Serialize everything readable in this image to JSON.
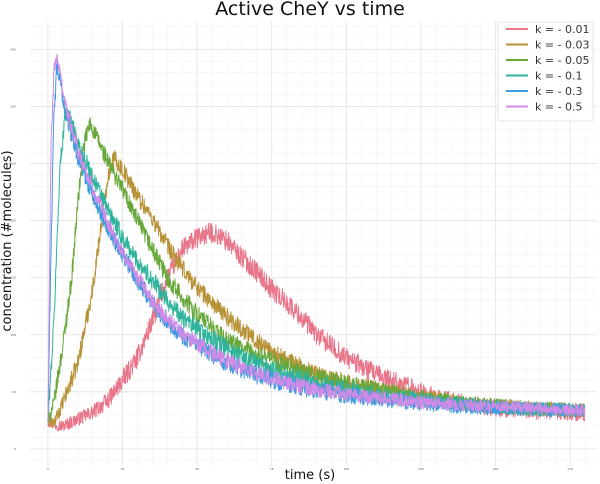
{
  "chart_data": {
    "type": "line",
    "title": "Active CheY vs time",
    "xlabel": "time (s)",
    "ylabel": "concentration (#molecules)",
    "xlim": [
      -6,
      184
    ],
    "ylim": [
      -15,
      375
    ],
    "grid": true,
    "legend_position": "top-right",
    "x_ticks": [
      0,
      25,
      50,
      75,
      100,
      125,
      150,
      175
    ],
    "y_ticks": [
      0,
      50,
      100,
      150,
      200,
      250,
      300,
      350
    ],
    "series": [
      {
        "name": "k = - 0.01",
        "color": "#e8758a",
        "points": [
          [
            0,
            25
          ],
          [
            2,
            22
          ],
          [
            5,
            20
          ],
          [
            10,
            26
          ],
          [
            15,
            32
          ],
          [
            20,
            42
          ],
          [
            25,
            60
          ],
          [
            30,
            80
          ],
          [
            35,
            112
          ],
          [
            40,
            150
          ],
          [
            45,
            175
          ],
          [
            50,
            185
          ],
          [
            55,
            190
          ],
          [
            60,
            182
          ],
          [
            65,
            168
          ],
          [
            70,
            155
          ],
          [
            75,
            140
          ],
          [
            80,
            128
          ],
          [
            85,
            115
          ],
          [
            90,
            100
          ],
          [
            95,
            90
          ],
          [
            100,
            80
          ],
          [
            110,
            65
          ],
          [
            120,
            55
          ],
          [
            130,
            45
          ],
          [
            140,
            40
          ],
          [
            150,
            35
          ],
          [
            160,
            33
          ],
          [
            170,
            32
          ],
          [
            180,
            30
          ]
        ],
        "noise": 9
      },
      {
        "name": "k = - 0.03",
        "color": "#b89236",
        "points": [
          [
            0,
            25
          ],
          [
            2,
            22
          ],
          [
            5,
            40
          ],
          [
            10,
            75
          ],
          [
            15,
            140
          ],
          [
            20,
            238
          ],
          [
            22,
            255
          ],
          [
            25,
            245
          ],
          [
            30,
            222
          ],
          [
            35,
            202
          ],
          [
            40,
            178
          ],
          [
            45,
            158
          ],
          [
            50,
            142
          ],
          [
            55,
            128
          ],
          [
            60,
            116
          ],
          [
            65,
            105
          ],
          [
            70,
            95
          ],
          [
            75,
            85
          ],
          [
            80,
            77
          ],
          [
            90,
            66
          ],
          [
            100,
            58
          ],
          [
            110,
            52
          ],
          [
            120,
            47
          ],
          [
            130,
            43
          ],
          [
            140,
            40
          ],
          [
            150,
            38
          ],
          [
            160,
            36
          ],
          [
            170,
            35
          ],
          [
            180,
            34
          ]
        ],
        "noise": 8
      },
      {
        "name": "k = - 0.05",
        "color": "#68a83a",
        "points": [
          [
            0,
            25
          ],
          [
            2,
            40
          ],
          [
            5,
            90
          ],
          [
            8,
            150
          ],
          [
            10,
            215
          ],
          [
            12,
            265
          ],
          [
            14,
            285
          ],
          [
            16,
            275
          ],
          [
            20,
            252
          ],
          [
            25,
            228
          ],
          [
            30,
            200
          ],
          [
            35,
            175
          ],
          [
            40,
            150
          ],
          [
            45,
            133
          ],
          [
            50,
            118
          ],
          [
            60,
            95
          ],
          [
            70,
            82
          ],
          [
            80,
            72
          ],
          [
            90,
            63
          ],
          [
            100,
            57
          ],
          [
            110,
            52
          ],
          [
            120,
            47
          ],
          [
            130,
            43
          ],
          [
            140,
            40
          ],
          [
            150,
            38
          ],
          [
            160,
            36
          ],
          [
            170,
            35
          ],
          [
            180,
            34
          ]
        ],
        "noise": 8
      },
      {
        "name": "k = - 0.1",
        "color": "#2eb39c",
        "points": [
          [
            0,
            25
          ],
          [
            2,
            110
          ],
          [
            4,
            245
          ],
          [
            6,
            300
          ],
          [
            8,
            285
          ],
          [
            10,
            268
          ],
          [
            15,
            238
          ],
          [
            20,
            210
          ],
          [
            25,
            185
          ],
          [
            30,
            165
          ],
          [
            35,
            148
          ],
          [
            40,
            130
          ],
          [
            45,
            115
          ],
          [
            50,
            105
          ],
          [
            60,
            88
          ],
          [
            70,
            75
          ],
          [
            80,
            65
          ],
          [
            90,
            57
          ],
          [
            100,
            52
          ],
          [
            110,
            47
          ],
          [
            120,
            44
          ],
          [
            130,
            41
          ],
          [
            140,
            39
          ],
          [
            150,
            37
          ],
          [
            160,
            35
          ],
          [
            170,
            34
          ],
          [
            180,
            33
          ]
        ],
        "noise": 8
      },
      {
        "name": "k = - 0.3",
        "color": "#3d9be0",
        "points": [
          [
            0,
            25
          ],
          [
            1,
            170
          ],
          [
            2,
            290
          ],
          [
            3,
            335
          ],
          [
            4,
            322
          ],
          [
            6,
            295
          ],
          [
            8,
            275
          ],
          [
            10,
            257
          ],
          [
            15,
            222
          ],
          [
            20,
            195
          ],
          [
            25,
            170
          ],
          [
            30,
            148
          ],
          [
            35,
            128
          ],
          [
            40,
            112
          ],
          [
            45,
            100
          ],
          [
            50,
            90
          ],
          [
            60,
            75
          ],
          [
            70,
            65
          ],
          [
            80,
            57
          ],
          [
            90,
            51
          ],
          [
            100,
            47
          ],
          [
            110,
            44
          ],
          [
            120,
            41
          ],
          [
            130,
            39
          ],
          [
            140,
            37
          ],
          [
            150,
            36
          ],
          [
            160,
            35
          ],
          [
            170,
            34
          ],
          [
            180,
            33
          ]
        ],
        "noise": 8
      },
      {
        "name": "k = - 0.5",
        "color": "#cf8be6",
        "points": [
          [
            0,
            25
          ],
          [
            1,
            260
          ],
          [
            2,
            330
          ],
          [
            3,
            345
          ],
          [
            4,
            330
          ],
          [
            6,
            300
          ],
          [
            8,
            280
          ],
          [
            10,
            262
          ],
          [
            15,
            228
          ],
          [
            20,
            198
          ],
          [
            25,
            172
          ],
          [
            30,
            150
          ],
          [
            35,
            130
          ],
          [
            40,
            114
          ],
          [
            45,
            102
          ],
          [
            50,
            92
          ],
          [
            60,
            77
          ],
          [
            70,
            66
          ],
          [
            80,
            58
          ],
          [
            90,
            52
          ],
          [
            100,
            48
          ],
          [
            110,
            45
          ],
          [
            120,
            42
          ],
          [
            130,
            40
          ],
          [
            140,
            38
          ],
          [
            150,
            37
          ],
          [
            160,
            36
          ],
          [
            170,
            35
          ],
          [
            180,
            34
          ]
        ],
        "noise": 7
      }
    ]
  }
}
